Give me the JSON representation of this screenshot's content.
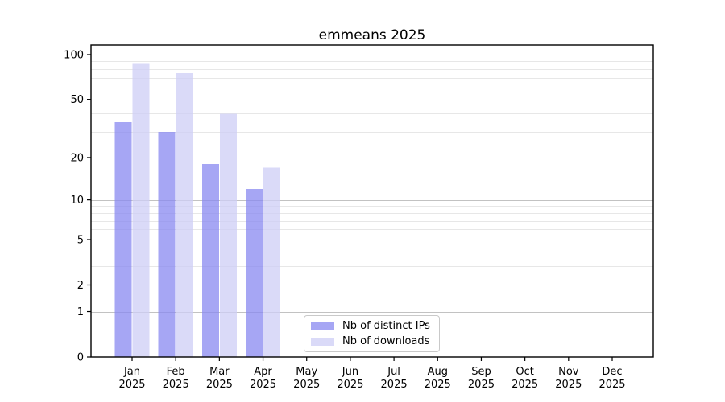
{
  "chart_data": {
    "type": "bar",
    "scale": "log1p",
    "title": "emmeans 2025",
    "categories": [
      "Jan",
      "Feb",
      "Mar",
      "Apr",
      "May",
      "Jun",
      "Jul",
      "Aug",
      "Sep",
      "Oct",
      "Nov",
      "Dec"
    ],
    "category_sublabel": "2025",
    "series": [
      {
        "name": "Nb of distinct IPs",
        "color": "#a6a6f4",
        "values": [
          35,
          30,
          18,
          12,
          null,
          null,
          null,
          null,
          null,
          null,
          null,
          null
        ]
      },
      {
        "name": "Nb of downloads",
        "color": "#dadaf8",
        "values": [
          88,
          75,
          40,
          17,
          null,
          null,
          null,
          null,
          null,
          null,
          null,
          null
        ]
      }
    ],
    "yticks": [
      0,
      1,
      2,
      5,
      10,
      20,
      50,
      100
    ],
    "ylim": [
      0,
      116
    ],
    "gridlines": {
      "major": [
        1,
        10,
        100
      ],
      "minor": [
        2,
        3,
        4,
        5,
        6,
        7,
        8,
        9,
        20,
        30,
        40,
        50,
        60,
        70,
        80,
        90
      ]
    },
    "legend_position": "lower center"
  },
  "colors": {
    "background": "#ffffff",
    "grid_minor": "#e7e7e7",
    "grid_major": "#c2c2c2",
    "spine": "#000000",
    "text": "#000000",
    "legend_border": "#c9c9c9"
  }
}
